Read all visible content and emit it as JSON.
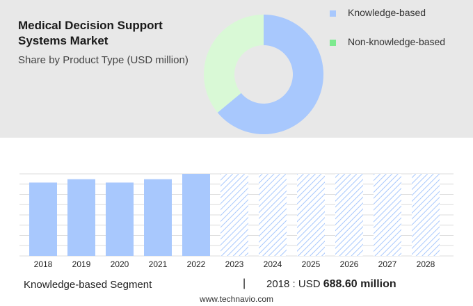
{
  "header": {
    "title_line1": "Medical Decision Support",
    "title_line2": "Systems Market",
    "subtitle": "Share by Product Type (USD million)"
  },
  "legend": [
    {
      "label": "Knowledge-based",
      "color": "#a8c8fd"
    },
    {
      "label": "Non-knowledge-based",
      "color": "#7dea8f"
    }
  ],
  "footer": {
    "segment": "Knowledge-based Segment",
    "separator": "|",
    "year_label": "2018 : USD",
    "value": "688.60 million",
    "site": "www.technavio.com"
  },
  "chart_data": [
    {
      "type": "pie",
      "donut": true,
      "categories": [
        "Knowledge-based",
        "Non-knowledge-based"
      ],
      "values": [
        64,
        36
      ],
      "colors": [
        "#a8c8fd",
        "#d9f9d6"
      ]
    },
    {
      "type": "bar",
      "categories": [
        "2018",
        "2019",
        "2020",
        "2021",
        "2022",
        "2023",
        "2024",
        "2025",
        "2026",
        "2027",
        "2028"
      ],
      "values": [
        688.6,
        720,
        688.6,
        720,
        770,
        770,
        770,
        770,
        770,
        770,
        770
      ],
      "forecast_from": "2023",
      "ylim": [
        0,
        770
      ],
      "grid": true,
      "color": "#a8c8fd"
    }
  ]
}
